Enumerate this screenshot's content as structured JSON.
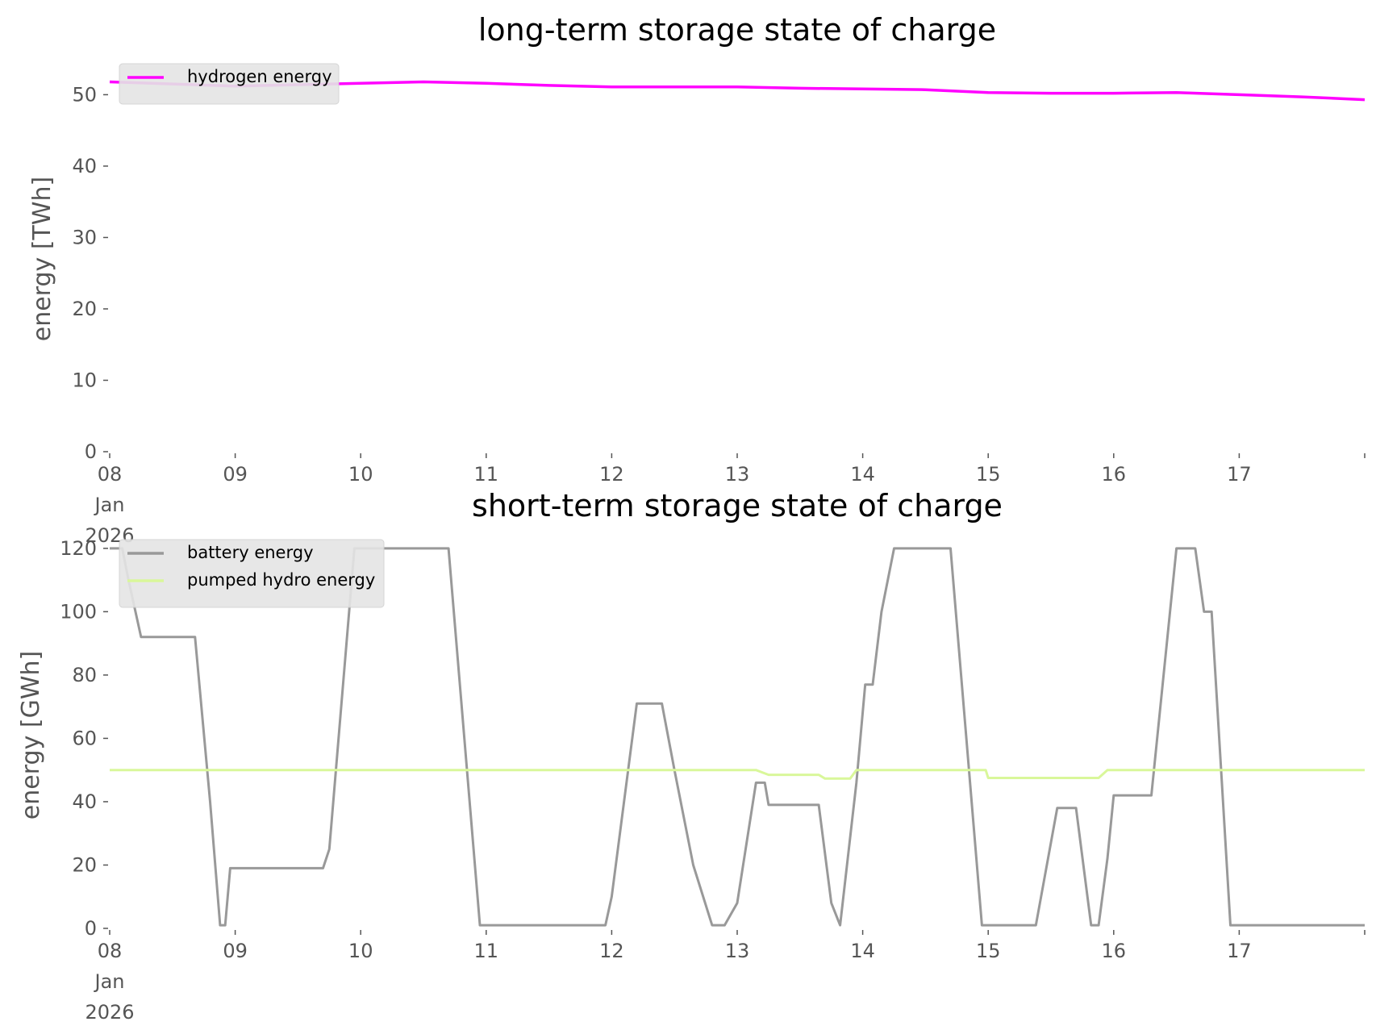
{
  "chart_data": [
    {
      "type": "line",
      "title": "long-term storage state of charge",
      "ylabel": "energy [TWh]",
      "xlabel": "",
      "ylim": [
        0,
        54
      ],
      "yticks": [
        "0",
        "10",
        "20",
        "30",
        "40",
        "50"
      ],
      "xlim": [
        "2026-01-08",
        "2026-01-18"
      ],
      "xticks": [
        {
          "label": "08\nJan\n2026",
          "day": 8
        },
        {
          "label": "09",
          "day": 9
        },
        {
          "label": "10",
          "day": 10
        },
        {
          "label": "11",
          "day": 11
        },
        {
          "label": "12",
          "day": 12
        },
        {
          "label": "13",
          "day": 13
        },
        {
          "label": "14",
          "day": 14
        },
        {
          "label": "15",
          "day": 15
        },
        {
          "label": "16",
          "day": 16
        },
        {
          "label": "17",
          "day": 17
        }
      ],
      "grid": false,
      "legend": "top-left",
      "series": [
        {
          "name": "hydrogen energy",
          "color": "#ff00ff",
          "x": [
            8.0,
            8.5,
            9.0,
            9.5,
            10.0,
            10.5,
            11.0,
            11.5,
            12.0,
            12.5,
            13.0,
            13.5,
            14.0,
            14.5,
            15.0,
            15.5,
            16.0,
            16.5,
            17.0,
            17.5,
            18.0
          ],
          "y": [
            51.8,
            51.5,
            51.2,
            51.4,
            51.6,
            51.8,
            51.6,
            51.3,
            51.1,
            51.1,
            51.1,
            50.9,
            50.8,
            50.7,
            50.3,
            50.2,
            50.2,
            50.3,
            50.0,
            49.7,
            49.3
          ]
        }
      ]
    },
    {
      "type": "line",
      "title": "short-term storage state of charge",
      "ylabel": "energy [GWh]",
      "xlabel": "",
      "ylim": [
        0,
        122
      ],
      "yticks": [
        "0",
        "20",
        "40",
        "60",
        "80",
        "100",
        "120"
      ],
      "xlim": [
        "2026-01-08",
        "2026-01-18"
      ],
      "xticks": [
        {
          "label": "08\nJan\n2026",
          "day": 8
        },
        {
          "label": "09",
          "day": 9
        },
        {
          "label": "10",
          "day": 10
        },
        {
          "label": "11",
          "day": 11
        },
        {
          "label": "12",
          "day": 12
        },
        {
          "label": "13",
          "day": 13
        },
        {
          "label": "14",
          "day": 14
        },
        {
          "label": "15",
          "day": 15
        },
        {
          "label": "16",
          "day": 16
        },
        {
          "label": "17",
          "day": 17
        }
      ],
      "grid": false,
      "legend": "top-left",
      "series": [
        {
          "name": "battery energy",
          "color": "#999999",
          "x": [
            8.0,
            8.1,
            8.15,
            8.25,
            8.68,
            8.8,
            8.88,
            8.92,
            8.96,
            9.0,
            9.7,
            9.75,
            9.95,
            10.7,
            10.95,
            11.95,
            12.0,
            12.2,
            12.4,
            12.5,
            12.65,
            12.8,
            12.9,
            13.0,
            13.15,
            13.22,
            13.25,
            13.65,
            13.75,
            13.82,
            13.95,
            14.02,
            14.08,
            14.15,
            14.25,
            14.7,
            14.95,
            15.38,
            15.55,
            15.7,
            15.82,
            15.88,
            15.95,
            16.0,
            16.3,
            16.5,
            16.65,
            16.72,
            16.75,
            16.78,
            16.93,
            17.0,
            17.5,
            18.0
          ],
          "y": [
            120,
            120,
            110,
            92,
            92,
            40,
            1,
            1,
            19,
            19,
            19,
            25,
            120,
            120,
            1,
            1,
            10,
            71,
            71,
            50,
            20,
            1,
            1,
            8,
            46,
            46,
            39,
            39,
            8,
            1,
            46,
            77,
            77,
            100,
            120,
            120,
            1,
            1,
            38,
            38,
            1,
            1,
            22,
            42,
            42,
            120,
            120,
            100,
            100,
            100,
            1,
            1,
            1,
            1
          ]
        },
        {
          "name": "pumped hydro energy",
          "color": "#d9f79a",
          "x": [
            8.0,
            13.15,
            13.25,
            13.65,
            13.7,
            13.9,
            13.95,
            14.75,
            14.98,
            15.0,
            15.88,
            15.95,
            16.0,
            18.0
          ],
          "y": [
            50,
            50,
            48.5,
            48.5,
            47.3,
            47.3,
            50,
            50,
            50,
            47.5,
            47.5,
            50,
            50,
            50
          ]
        }
      ]
    }
  ]
}
